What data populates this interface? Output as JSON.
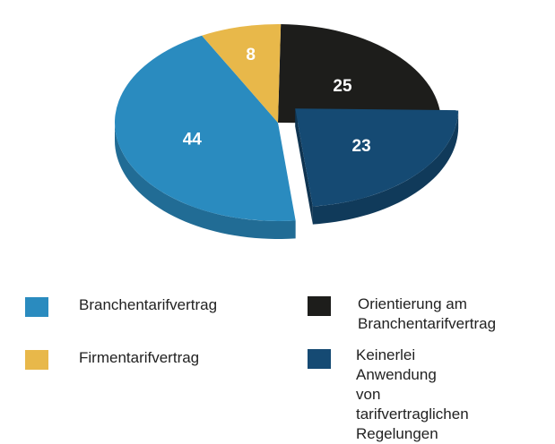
{
  "chart_data": {
    "type": "pie",
    "style": "3d-exploded",
    "slices": [
      {
        "name": "Orientierung am Branchentarifvertrag",
        "value": 25,
        "label": "25",
        "color": "#1d1d1b",
        "exploded": false
      },
      {
        "name": "Keinerlei Anwendung von tarifvertraglichen Regelungen",
        "value": 23,
        "label": "23",
        "color": "#154a73",
        "exploded": true
      },
      {
        "name": "Branchentarifvertrag",
        "value": 44,
        "label": "44",
        "color": "#2a8bbf",
        "exploded": false
      },
      {
        "name": "Firmentarifvertrag",
        "value": 8,
        "label": "8",
        "color": "#e8b84a",
        "exploded": false
      }
    ],
    "legend": {
      "placement": "bottom",
      "items": [
        {
          "label": "Branchentarifvertrag",
          "color": "#2a8bbf"
        },
        {
          "label": "Orientierung am\nBranchentarifvertrag",
          "color": "#1d1d1b"
        },
        {
          "label": "Firmentarifvertrag",
          "color": "#e8b84a"
        },
        {
          "label": "Keinerlei Anwendung\nvon tarifvertraglichen\nRegelungen",
          "color": "#154a73"
        }
      ]
    }
  }
}
